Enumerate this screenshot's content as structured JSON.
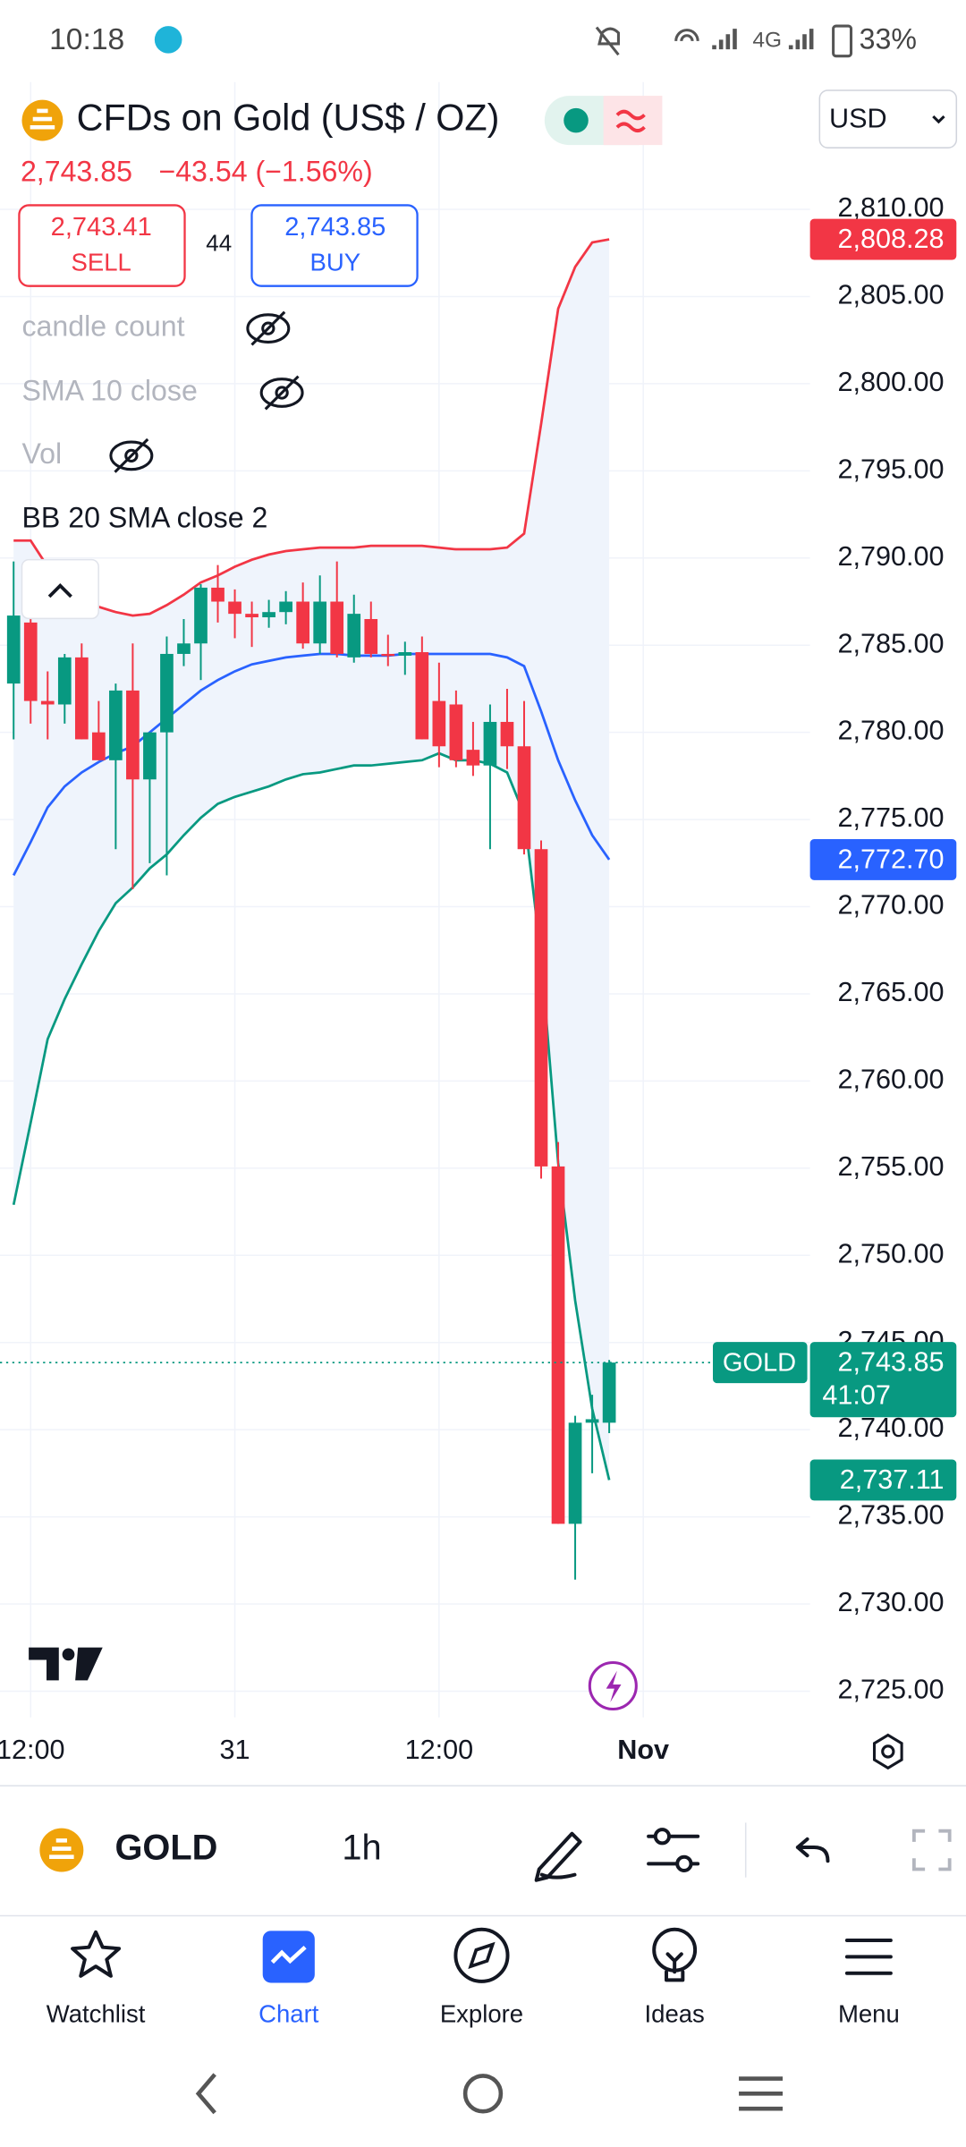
{
  "status_bar": {
    "time": "10:18",
    "network": "4G",
    "battery": "33%"
  },
  "header": {
    "title": "CFDs on Gold (US$ / OZ)",
    "price": "2,743.85",
    "change": "−43.54 (−1.56%)",
    "currency": "USD",
    "sell": {
      "price": "2,743.41",
      "label": "SELL"
    },
    "spread": "44",
    "buy": {
      "price": "2,743.85",
      "label": "BUY"
    }
  },
  "indicators": [
    "candle count",
    "SMA 10 close",
    "Vol",
    "BB 20 SMA close 2"
  ],
  "chart_data": {
    "type": "candlestick",
    "categories": [
      null,
      null,
      null,
      null,
      null,
      null,
      null,
      null,
      null,
      null,
      null,
      null,
      null,
      null,
      null,
      null,
      null,
      null,
      null,
      null,
      null,
      null,
      null,
      null,
      null,
      null,
      null,
      null,
      null,
      null,
      null,
      null,
      null,
      null,
      null,
      null
    ],
    "open": [
      2782.8,
      2786.3,
      2781.8,
      2781.6,
      2784.3,
      2780.0,
      2778.4,
      2782.4,
      2777.3,
      2780.0,
      2784.5,
      2785.1,
      2788.3,
      2787.5,
      2786.8,
      2786.6,
      2786.9,
      2787.5,
      2785.1,
      2787.5,
      2784.3,
      2786.5,
      2784.5,
      2784.4,
      2784.6,
      2781.8,
      2781.6,
      2779.0,
      2778.1,
      2780.6,
      2779.2,
      2773.3,
      2755.1,
      2734.6,
      2740.4,
      2740.4
    ],
    "high": [
      2789.8,
      2788.0,
      2783.5,
      2784.5,
      2785.1,
      2781.8,
      2782.8,
      2785.1,
      2780.0,
      2785.5,
      2786.5,
      2788.5,
      2789.6,
      2788.2,
      2787.5,
      2787.6,
      2788.1,
      2788.6,
      2789.0,
      2789.8,
      2787.9,
      2787.5,
      2785.6,
      2785.2,
      2785.5,
      2784.0,
      2782.4,
      2780.6,
      2781.6,
      2782.5,
      2781.8,
      2773.8,
      2756.5,
      2740.8,
      2742.0,
      2744.0
    ],
    "low": [
      2779.6,
      2780.5,
      2779.6,
      2780.5,
      2779.6,
      2778.4,
      2773.3,
      2771.0,
      2772.5,
      2771.8,
      2783.8,
      2783.0,
      2786.3,
      2785.4,
      2784.9,
      2786.0,
      2786.2,
      2784.8,
      2784.5,
      2784.3,
      2784.0,
      2784.3,
      2783.8,
      2783.3,
      2779.6,
      2778.0,
      2778.0,
      2777.5,
      2773.3,
      2777.9,
      2773.0,
      2754.4,
      2734.6,
      2731.4,
      2737.5,
      2739.8
    ],
    "close": [
      2786.7,
      2781.8,
      2781.6,
      2784.3,
      2779.6,
      2778.4,
      2782.4,
      2777.3,
      2780.0,
      2784.5,
      2785.1,
      2788.3,
      2787.5,
      2786.8,
      2786.6,
      2786.9,
      2787.5,
      2785.1,
      2787.5,
      2784.5,
      2786.8,
      2784.5,
      2784.4,
      2784.6,
      2779.6,
      2779.2,
      2778.4,
      2778.1,
      2780.6,
      2779.2,
      2773.3,
      2755.1,
      2734.6,
      2740.4,
      2740.6,
      2743.85
    ],
    "up_color": "#089981",
    "down_color": "#f23645",
    "bands": {
      "fill": "#eff4fc",
      "upper": {
        "color": "#f23645",
        "values": [
          2791.0,
          2791.0,
          2789.5,
          2788.3,
          2787.8,
          2787.2,
          2786.9,
          2786.7,
          2786.8,
          2787.3,
          2787.9,
          2788.6,
          2789.0,
          2789.5,
          2789.9,
          2790.2,
          2790.4,
          2790.5,
          2790.6,
          2790.6,
          2790.6,
          2790.7,
          2790.7,
          2790.7,
          2790.7,
          2790.6,
          2790.5,
          2790.5,
          2790.5,
          2790.6,
          2791.4,
          2797.7,
          2804.3,
          2806.7,
          2808.1,
          2808.28
        ]
      },
      "basis": {
        "color": "#2962ff",
        "values": [
          2771.8,
          2773.7,
          2775.7,
          2776.9,
          2777.7,
          2778.3,
          2778.8,
          2779.2,
          2780.0,
          2780.8,
          2781.6,
          2782.4,
          2783.0,
          2783.5,
          2783.9,
          2784.1,
          2784.3,
          2784.4,
          2784.5,
          2784.5,
          2784.4,
          2784.4,
          2784.4,
          2784.5,
          2784.5,
          2784.5,
          2784.5,
          2784.5,
          2784.5,
          2784.3,
          2783.8,
          2781.2,
          2778.4,
          2776.1,
          2774.1,
          2772.7
        ]
      },
      "lower": {
        "color": "#089981",
        "values": [
          2752.9,
          2757.6,
          2762.4,
          2764.7,
          2766.7,
          2768.6,
          2770.2,
          2771.1,
          2772.2,
          2773.0,
          2774.1,
          2775.1,
          2775.9,
          2776.3,
          2776.6,
          2776.9,
          2777.3,
          2777.6,
          2777.7,
          2777.9,
          2778.1,
          2778.1,
          2778.2,
          2778.3,
          2778.4,
          2778.8,
          2778.4,
          2778.4,
          2778.2,
          2777.7,
          2775.3,
          2767.1,
          2755.3,
          2747.4,
          2741.2,
          2737.11
        ]
      }
    },
    "xlim": [
      -0.8,
      46.8
    ],
    "xticks": [
      {
        "value": 1,
        "label": "12:00"
      },
      {
        "value": 13,
        "label": "31"
      },
      {
        "value": 25,
        "label": "12:00"
      },
      {
        "value": 37,
        "label": "Nov"
      }
    ],
    "ylim": [
      2723.5,
      2817.3
    ],
    "yticks": [
      {
        "value": 2725,
        "label": "2,725.00"
      },
      {
        "value": 2730,
        "label": "2,730.00"
      },
      {
        "value": 2735,
        "label": "2,735.00"
      },
      {
        "value": 2740,
        "label": "2,740.00"
      },
      {
        "value": 2745,
        "label": "2,745.00"
      },
      {
        "value": 2750,
        "label": "2,750.00"
      },
      {
        "value": 2755,
        "label": "2,755.00"
      },
      {
        "value": 2760,
        "label": "2,760.00"
      },
      {
        "value": 2765,
        "label": "2,765.00"
      },
      {
        "value": 2770,
        "label": "2,770.00"
      },
      {
        "value": 2775,
        "label": "2,775.00"
      },
      {
        "value": 2780,
        "label": "2,780.00"
      },
      {
        "value": 2785,
        "label": "2,785.00"
      },
      {
        "value": 2790,
        "label": "2,790.00"
      },
      {
        "value": 2795,
        "label": "2,795.00"
      },
      {
        "value": 2800,
        "label": "2,800.00"
      },
      {
        "value": 2805,
        "label": "2,805.00"
      },
      {
        "value": 2810,
        "label": "2,810.00"
      }
    ],
    "grid": true,
    "price_labels": [
      {
        "value": 2808.28,
        "label": "2,808.28",
        "color": "#f23645"
      },
      {
        "value": 2772.7,
        "label": "2,772.70",
        "color": "#2962ff"
      },
      {
        "value": 2737.11,
        "label": "2,737.11",
        "color": "#089981"
      }
    ],
    "last_price": {
      "value": 2743.85,
      "label": "2,743.85",
      "countdown": "41:07",
      "symbol": "GOLD",
      "color": "#089981"
    }
  },
  "toolbar": {
    "symbol": "GOLD",
    "interval": "1h"
  },
  "nav": [
    "Watchlist",
    "Chart",
    "Explore",
    "Ideas",
    "Menu"
  ]
}
